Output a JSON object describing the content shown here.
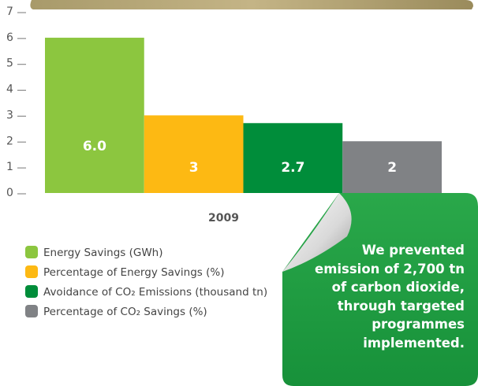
{
  "chart_data": {
    "type": "bar",
    "categories": [
      "2009"
    ],
    "series": [
      {
        "name": "Energy Savings (GWh)",
        "color": "#8cc63f",
        "values": [
          6
        ],
        "value_labels": [
          "6.0"
        ]
      },
      {
        "name": "Percentage of Energy Savings (%)",
        "color": "#fdb913",
        "values": [
          3
        ]
      },
      {
        "name": "Avoidance of CO₂ Emissions (thousand tn)",
        "color": "#008d3a",
        "values": [
          2.7
        ]
      },
      {
        "name": "Percentage of CO₂ Savings (%)",
        "color": "#808285",
        "values": [
          2
        ]
      }
    ],
    "ylim": [
      0,
      7
    ],
    "yticks": [
      0,
      1,
      2,
      3,
      4,
      5,
      6,
      7
    ],
    "annotation": "We prevented emission of 2,700 tn of carbon dioxide, through targeted programmes implemented."
  }
}
